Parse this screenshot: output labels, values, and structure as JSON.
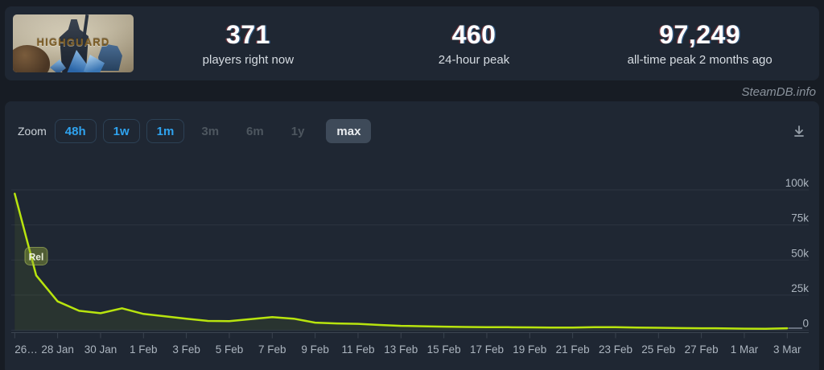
{
  "header": {
    "banner_title": "HIGHGUARD",
    "stats": [
      {
        "value": "371",
        "label": "players right now"
      },
      {
        "value": "460",
        "label": "24-hour peak"
      },
      {
        "value": "97,249",
        "label": "all-time peak 2 months ago"
      }
    ]
  },
  "watermark": "SteamDB.info",
  "toolbar": {
    "zoom_label": "Zoom",
    "buttons": [
      {
        "label": "48h",
        "state": "enabled"
      },
      {
        "label": "1w",
        "state": "enabled"
      },
      {
        "label": "1m",
        "state": "enabled"
      },
      {
        "label": "3m",
        "state": "disabled"
      },
      {
        "label": "6m",
        "state": "disabled"
      },
      {
        "label": "1y",
        "state": "disabled"
      },
      {
        "label": "max",
        "state": "selected"
      }
    ],
    "accent_blue": "#2fa3ef"
  },
  "chart_data": {
    "type": "area",
    "legend": "off",
    "grid": "on",
    "ylim": [
      0,
      114000
    ],
    "y_axis": {
      "ticks": [
        {
          "label": "100k",
          "value": 100000
        },
        {
          "label": "75k",
          "value": 75000
        },
        {
          "label": "50k",
          "value": 50000
        },
        {
          "label": "25k",
          "value": 25000
        },
        {
          "label": "0",
          "value": 0
        }
      ]
    },
    "x_axis": {
      "ticks": [
        {
          "label": "26…",
          "day": 0
        },
        {
          "label": "28 Jan",
          "day": 2
        },
        {
          "label": "30 Jan",
          "day": 4
        },
        {
          "label": "1 Feb",
          "day": 6
        },
        {
          "label": "3 Feb",
          "day": 8
        },
        {
          "label": "5 Feb",
          "day": 10
        },
        {
          "label": "7 Feb",
          "day": 12
        },
        {
          "label": "9 Feb",
          "day": 14
        },
        {
          "label": "11 Feb",
          "day": 16
        },
        {
          "label": "13 Feb",
          "day": 18
        },
        {
          "label": "15 Feb",
          "day": 20
        },
        {
          "label": "17 Feb",
          "day": 22
        },
        {
          "label": "19 Feb",
          "day": 24
        },
        {
          "label": "21 Feb",
          "day": 26
        },
        {
          "label": "23 Feb",
          "day": 28
        },
        {
          "label": "25 Feb",
          "day": 30
        },
        {
          "label": "27 Feb",
          "day": 32
        },
        {
          "label": "1 Mar",
          "day": 34
        },
        {
          "label": "3 Mar",
          "day": 36
        }
      ]
    },
    "series": [
      {
        "name": "Players",
        "color": "#b8e40e",
        "points": [
          [
            0,
            97249
          ],
          [
            1,
            39000
          ],
          [
            2,
            20500
          ],
          [
            3,
            13800
          ],
          [
            4,
            12100
          ],
          [
            5,
            15600
          ],
          [
            6,
            11600
          ],
          [
            7,
            9900
          ],
          [
            8,
            8200
          ],
          [
            9,
            6600
          ],
          [
            10,
            6500
          ],
          [
            11,
            7900
          ],
          [
            12,
            9300
          ],
          [
            13,
            8200
          ],
          [
            14,
            5400
          ],
          [
            15,
            4800
          ],
          [
            16,
            4500
          ],
          [
            17,
            3700
          ],
          [
            18,
            3100
          ],
          [
            19,
            2800
          ],
          [
            20,
            2500
          ],
          [
            21,
            2300
          ],
          [
            22,
            2200
          ],
          [
            23,
            2100
          ],
          [
            24,
            2000
          ],
          [
            25,
            1900
          ],
          [
            26,
            1900
          ],
          [
            27,
            2100
          ],
          [
            28,
            2200
          ],
          [
            29,
            1900
          ],
          [
            30,
            1700
          ],
          [
            31,
            1500
          ],
          [
            32,
            1400
          ],
          [
            33,
            1300
          ],
          [
            34,
            1100
          ],
          [
            35,
            1000
          ],
          [
            36,
            1400
          ]
        ]
      }
    ],
    "annotations": [
      {
        "label": "Rel",
        "day": 1,
        "value": 39000
      }
    ],
    "colors": {
      "grid": "#2c3441",
      "axis": "#3b4450",
      "label": "#acb5bf",
      "fill": "rgba(184,228,14,0.07)",
      "flag_bg": "rgba(148,170,58,0.42)",
      "flag_border": "rgba(186,206,100,0.55)",
      "flag_text": "#eef2de",
      "zero_stub": "#67707e"
    }
  }
}
